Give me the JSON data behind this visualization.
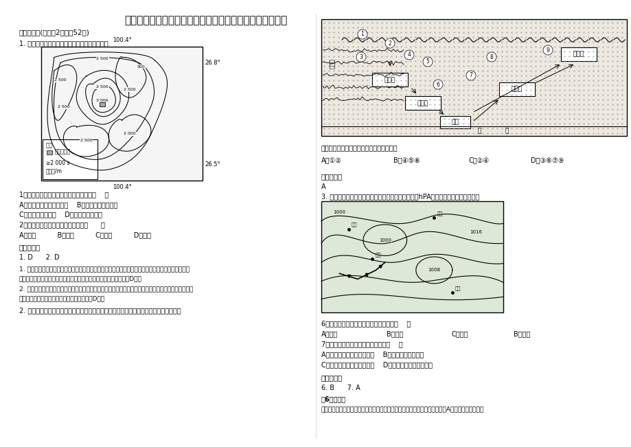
{
  "title": "湖南省张家界市樵子湾中学高三地理下学期期末试题含解析",
  "section1": "一、选择题(每小题2分，共52分)",
  "q1_intro": "1. 读我国某区域等高线示意图，回答下列各题。",
  "q1_1": "1．天文台所在地晴夜多于周边的原因是（    ）",
  "q1_1a": "A．常年受湿热带高压控制    B．地处西南风背风坡",
  "q1_1cd": "C．白天多上升气流    D．夜晚多下沉气流",
  "q1_2": "2．该光学天文台最佳的观测季节是（      ）",
  "q1_2abcd": "A．春季          B．夏季          C．秋季          D．冬季",
  "ref_ans": "参考答案：",
  "ans_1d2d": "1. D      2. D",
  "ans_explain1": "1. 从等高线图可以看出该天文台海拔高，由于空气稀薄，夜晚降温较快，气温低于周边地区，根据热力",
  "ans_explain1b": "环流原理，夜晚温度低，天文台附近难行下沉气流，多晴朗天气。选D项。",
  "ans_explain2": "2. 由经纬度可知，该天文台位于四川盆地，属于亚热带季风气候区，除冬季外，其他季节降水较多。而光",
  "ans_explain2b": "学天文台须在晴朗天气条件下进行观测，故选D项。",
  "q2_intro": "2. 在一定的地质作用下，某些有用的矿物富集形成了矿产。读地壳物质循环示意图，完成",
  "right_q_intro": "图中与煤炭资源形成相关的地质作用过程是",
  "right_q_opts_a": "A．①②",
  "right_q_opts_b": "B．④⑤⑧",
  "right_q_opts_c": "C．②④",
  "right_q_opts_d": "D．③⑥⑦⑨",
  "right_ref_ans": "参考答案：",
  "right_ans_val": "A",
  "q3_intro": "3. 下图为我国局部地区近地面等压线分布图（单位：hPA），读图，完成下面小题。",
  "q6_text": "6．此时，下列城市中风向为偏南风的是（    ）",
  "q6_opts_a": "A．郑州",
  "q6_opts_b": "B．成都",
  "q6_opts_c": "C．兰州",
  "q6_opts_d": "B．广州",
  "q7_text": "7．关于甲天气系统的叙述正确的是（    ）",
  "q7_opts_a": "A．其形成受云贵高原的影响    B．形成于我国的夏季",
  "q7_opts_cd": "C．云南大部分地区阴雨冷湿    D．该天气系统为快行冷锋",
  "right_ref_ans2": "参考答案：",
  "right_ans2": "6. B      7. A",
  "right_explain_tag": "【6题详解】",
  "right_explain": "读图可知，郑州此时水平气压梯度力大致由西指向东，风向右偏形成西北风，A不符合题意；读图可",
  "coord_top": "100.4°",
  "coord_bot": "100.4°",
  "coord_right_top": "26.8°",
  "coord_right_bot": "26.5°",
  "legend_title": "图例",
  "legend_obs": "光学天文台",
  "legend_contour": "≥2 000 s",
  "legend_unit": "等高线/m",
  "bg_color": "#ffffff",
  "map_bg": "#f5f5f5",
  "diag_bg": "#ede8e0"
}
